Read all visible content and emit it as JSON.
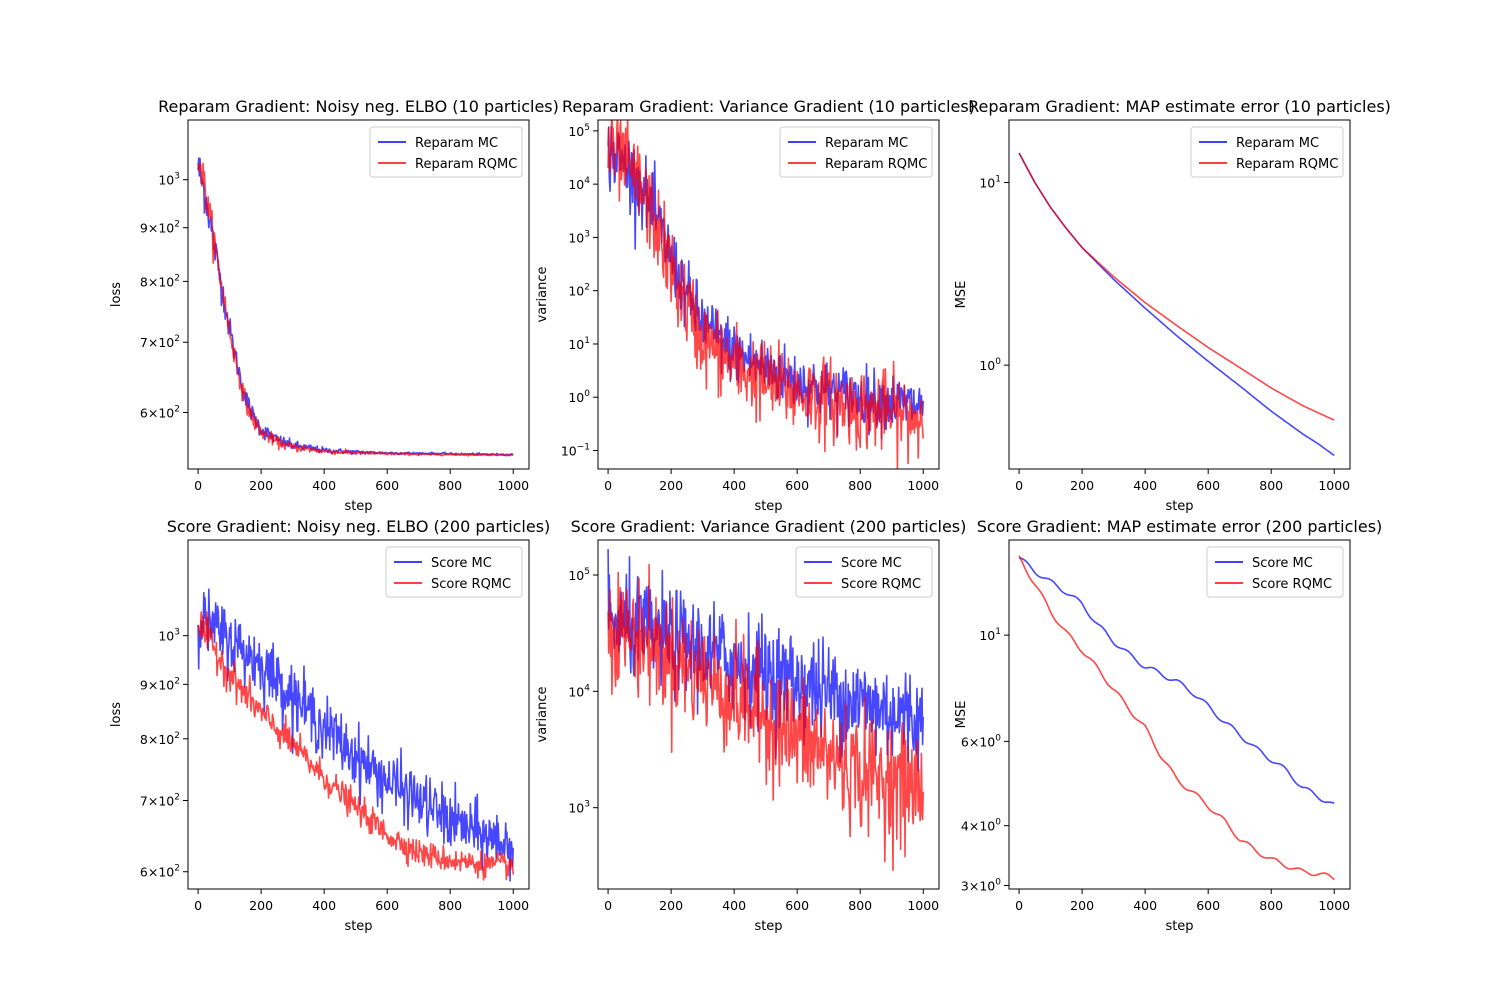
{
  "figure": {
    "background": "#ffffff"
  },
  "colors": {
    "mc": "#0000ff",
    "rqmc": "#ff0000",
    "mc_alpha": 0.72,
    "rqmc_alpha": 0.72
  },
  "chart_data": [
    {
      "type": "line",
      "title": "Reparam Gradient: Noisy neg. ELBO (10 particles)",
      "xlabel": "step",
      "ylabel": "loss",
      "yscale": "log",
      "xlim": [
        -32,
        1050
      ],
      "ylim": [
        530,
        1140
      ],
      "xticks": [
        0,
        200,
        400,
        600,
        800,
        1000
      ],
      "yticks": [
        {
          "value": 600,
          "base": "6",
          "exp": "2"
        },
        {
          "value": 700,
          "base": "7",
          "exp": "2"
        },
        {
          "value": 800,
          "base": "8",
          "exp": "2"
        },
        {
          "value": 900,
          "base": "9",
          "exp": "2"
        },
        {
          "value": 1000,
          "base": "10",
          "exp": "3"
        }
      ],
      "legend": "top-right",
      "grid": false,
      "series": [
        {
          "name": "Reparam MC",
          "color": "#0000ff",
          "style": "noisy",
          "curve": [
            [
              0,
              1030
            ],
            [
              25,
              960
            ],
            [
              50,
              870
            ],
            [
              75,
              790
            ],
            [
              100,
              720
            ],
            [
              125,
              665
            ],
            [
              150,
              620
            ],
            [
              175,
              595
            ],
            [
              200,
              578
            ],
            [
              250,
              565
            ],
            [
              300,
              558
            ],
            [
              400,
              552
            ],
            [
              500,
              550
            ],
            [
              600,
              549
            ],
            [
              800,
              548
            ],
            [
              1000,
              547
            ]
          ],
          "noise": 0.025,
          "noise_end": 0.0008,
          "noise_tau": 180
        },
        {
          "name": "Reparam RQMC",
          "color": "#ff0000",
          "style": "noisy",
          "curve": [
            [
              0,
              1060
            ],
            [
              25,
              970
            ],
            [
              50,
              875
            ],
            [
              75,
              792
            ],
            [
              100,
              718
            ],
            [
              125,
              660
            ],
            [
              150,
              615
            ],
            [
              175,
              590
            ],
            [
              200,
              575
            ],
            [
              250,
              562
            ],
            [
              300,
              556
            ],
            [
              400,
              551
            ],
            [
              500,
              549
            ],
            [
              600,
              548
            ],
            [
              800,
              547
            ],
            [
              1000,
              546.5
            ]
          ],
          "noise": 0.022,
          "noise_end": 0.0007,
          "noise_tau": 180
        }
      ]
    },
    {
      "type": "line",
      "title": "Reparam Gradient: Variance Gradient (10 particles)",
      "xlabel": "step",
      "ylabel": "variance",
      "yscale": "log",
      "xlim": [
        -32,
        1050
      ],
      "ylim": [
        0.045,
        160000
      ],
      "xticks": [
        0,
        200,
        400,
        600,
        800,
        1000
      ],
      "yticks": [
        {
          "value": 0.1,
          "base": "10",
          "exp": "−1"
        },
        {
          "value": 1,
          "base": "10",
          "exp": "0"
        },
        {
          "value": 10,
          "base": "10",
          "exp": "1"
        },
        {
          "value": 100,
          "base": "10",
          "exp": "2"
        },
        {
          "value": 1000,
          "base": "10",
          "exp": "3"
        },
        {
          "value": 10000,
          "base": "10",
          "exp": "4"
        },
        {
          "value": 100000,
          "base": "10",
          "exp": "5"
        }
      ],
      "legend": "top-right",
      "grid": false,
      "series": [
        {
          "name": "Reparam MC",
          "color": "#0000ff",
          "style": "noisy",
          "curve": [
            [
              0,
              40000
            ],
            [
              50,
              25000
            ],
            [
              100,
              10000
            ],
            [
              150,
              2500
            ],
            [
              200,
              400
            ],
            [
              250,
              80
            ],
            [
              300,
              25
            ],
            [
              400,
              7
            ],
            [
              500,
              3.5
            ],
            [
              600,
              2
            ],
            [
              700,
              1.3
            ],
            [
              800,
              1
            ],
            [
              900,
              0.8
            ],
            [
              1000,
              0.7
            ]
          ],
          "noise": 0.8,
          "noise_end": 0.6,
          "noise_tau": 400
        },
        {
          "name": "Reparam RQMC",
          "color": "#ff0000",
          "style": "noisy",
          "curve": [
            [
              0,
              45000
            ],
            [
              50,
              25000
            ],
            [
              100,
              9000
            ],
            [
              150,
              2000
            ],
            [
              200,
              250
            ],
            [
              250,
              50
            ],
            [
              300,
              12
            ],
            [
              400,
              4
            ],
            [
              500,
              2
            ],
            [
              600,
              1.2
            ],
            [
              700,
              0.9
            ],
            [
              800,
              0.6
            ],
            [
              900,
              0.5
            ],
            [
              1000,
              0.4
            ]
          ],
          "noise": 0.95,
          "noise_end": 0.85,
          "noise_tau": 400
        }
      ]
    },
    {
      "type": "line",
      "title": "Reparam Gradient: MAP estimate error (10 particles)",
      "xlabel": "step",
      "ylabel": "MSE",
      "yscale": "log",
      "xlim": [
        -32,
        1050
      ],
      "ylim": [
        0.27,
        22
      ],
      "xticks": [
        0,
        200,
        400,
        600,
        800,
        1000
      ],
      "yticks": [
        {
          "value": 1,
          "base": "10",
          "exp": "0"
        },
        {
          "value": 10,
          "base": "10",
          "exp": "1"
        }
      ],
      "legend": "top-right",
      "grid": false,
      "series": [
        {
          "name": "Reparam MC",
          "color": "#0000ff",
          "style": "smooth",
          "curve": [
            [
              0,
              14.5
            ],
            [
              50,
              10
            ],
            [
              100,
              7.3
            ],
            [
              150,
              5.6
            ],
            [
              200,
              4.4
            ],
            [
              300,
              2.95
            ],
            [
              400,
              2.05
            ],
            [
              500,
              1.45
            ],
            [
              600,
              1.05
            ],
            [
              700,
              0.77
            ],
            [
              800,
              0.56
            ],
            [
              900,
              0.42
            ],
            [
              950,
              0.37
            ],
            [
              1000,
              0.32
            ]
          ]
        },
        {
          "name": "Reparam RQMC",
          "color": "#ff0000",
          "style": "smooth",
          "curve": [
            [
              0,
              14.5
            ],
            [
              50,
              10
            ],
            [
              100,
              7.3
            ],
            [
              150,
              5.6
            ],
            [
              200,
              4.4
            ],
            [
              300,
              3.05
            ],
            [
              400,
              2.2
            ],
            [
              500,
              1.65
            ],
            [
              600,
              1.25
            ],
            [
              700,
              0.97
            ],
            [
              800,
              0.75
            ],
            [
              900,
              0.6
            ],
            [
              1000,
              0.5
            ]
          ]
        }
      ]
    },
    {
      "type": "line",
      "title": "Score Gradient: Noisy neg. ELBO (200 particles)",
      "xlabel": "step",
      "ylabel": "loss",
      "yscale": "log",
      "xlim": [
        -32,
        1050
      ],
      "ylim": [
        578,
        1230
      ],
      "xticks": [
        0,
        200,
        400,
        600,
        800,
        1000
      ],
      "yticks": [
        {
          "value": 600,
          "base": "6",
          "exp": "2"
        },
        {
          "value": 700,
          "base": "7",
          "exp": "2"
        },
        {
          "value": 800,
          "base": "8",
          "exp": "2"
        },
        {
          "value": 900,
          "base": "9",
          "exp": "2"
        },
        {
          "value": 1000,
          "base": "10",
          "exp": "3"
        }
      ],
      "legend": "top-right",
      "grid": false,
      "series": [
        {
          "name": "Score MC",
          "color": "#0000ff",
          "style": "noisy",
          "curve": [
            [
              0,
              1040
            ],
            [
              100,
              990
            ],
            [
              200,
              940
            ],
            [
              300,
              880
            ],
            [
              400,
              820
            ],
            [
              500,
              770
            ],
            [
              600,
              730
            ],
            [
              700,
              700
            ],
            [
              800,
              670
            ],
            [
              900,
              650
            ],
            [
              1000,
              635
            ]
          ],
          "noise": 0.035,
          "noise_end": 0.03,
          "noise_tau": 1000
        },
        {
          "name": "Score RQMC",
          "color": "#ff0000",
          "style": "noisy",
          "curve": [
            [
              0,
              1030
            ],
            [
              100,
              920
            ],
            [
              200,
              845
            ],
            [
              300,
              790
            ],
            [
              400,
              735
            ],
            [
              500,
              690
            ],
            [
              600,
              650
            ],
            [
              700,
              625
            ],
            [
              800,
              615
            ],
            [
              900,
              610
            ],
            [
              1000,
              608
            ]
          ],
          "noise": 0.02,
          "noise_end": 0.012,
          "noise_tau": 500
        }
      ]
    },
    {
      "type": "line",
      "title": "Score Gradient: Variance Gradient (200 particles)",
      "xlabel": "step",
      "ylabel": "variance",
      "yscale": "log",
      "xlim": [
        -32,
        1050
      ],
      "ylim": [
        200,
        200000
      ],
      "xticks": [
        0,
        200,
        400,
        600,
        800,
        1000
      ],
      "yticks": [
        {
          "value": 1000,
          "base": "10",
          "exp": "3"
        },
        {
          "value": 10000,
          "base": "10",
          "exp": "4"
        },
        {
          "value": 100000,
          "base": "10",
          "exp": "5"
        }
      ],
      "legend": "top-right",
      "grid": false,
      "series": [
        {
          "name": "Score MC",
          "color": "#0000ff",
          "style": "noisy",
          "curve": [
            [
              0,
              40000
            ],
            [
              200,
              28000
            ],
            [
              400,
              18000
            ],
            [
              600,
              12000
            ],
            [
              800,
              8000
            ],
            [
              1000,
              5500
            ]
          ],
          "noise": 0.5,
          "noise_end": 0.5,
          "noise_tau": 1000
        },
        {
          "name": "Score RQMC",
          "color": "#ff0000",
          "style": "noisy",
          "curve": [
            [
              0,
              40000
            ],
            [
              200,
              20000
            ],
            [
              400,
              9000
            ],
            [
              600,
              4000
            ],
            [
              800,
              2000
            ],
            [
              1000,
              1400
            ]
          ],
          "noise": 0.55,
          "noise_end": 0.6,
          "noise_tau": 1000
        }
      ]
    },
    {
      "type": "line",
      "title": "Score Gradient: MAP estimate error (200 particles)",
      "xlabel": "step",
      "ylabel": "MSE",
      "yscale": "log",
      "xlim": [
        -32,
        1050
      ],
      "ylim": [
        2.95,
        15.8
      ],
      "xticks": [
        0,
        200,
        400,
        600,
        800,
        1000
      ],
      "yticks": [
        {
          "value": 3,
          "base": "3",
          "exp": "0"
        },
        {
          "value": 4,
          "base": "4",
          "exp": "0"
        },
        {
          "value": 6,
          "base": "6",
          "exp": "0"
        },
        {
          "value": 10,
          "base": "10",
          "exp": "1"
        }
      ],
      "legend": "top-right",
      "grid": false,
      "series": [
        {
          "name": "Score MC",
          "color": "#0000ff",
          "style": "smooth",
          "curve": [
            [
              0,
              14.5
            ],
            [
              50,
              13.6
            ],
            [
              100,
              12.9
            ],
            [
              150,
              12.3
            ],
            [
              200,
              11.6
            ],
            [
              250,
              10.5
            ],
            [
              300,
              9.7
            ],
            [
              350,
              9.1
            ],
            [
              400,
              8.6
            ],
            [
              450,
              8.3
            ],
            [
              500,
              8.0
            ],
            [
              550,
              7.6
            ],
            [
              600,
              7.1
            ],
            [
              650,
              6.6
            ],
            [
              700,
              6.2
            ],
            [
              750,
              5.8
            ],
            [
              800,
              5.5
            ],
            [
              850,
              5.2
            ],
            [
              900,
              4.8
            ],
            [
              950,
              4.6
            ],
            [
              1000,
              4.4
            ]
          ],
          "wiggle": 0.012
        },
        {
          "name": "Score RQMC",
          "color": "#ff0000",
          "style": "smooth",
          "curve": [
            [
              0,
              14.5
            ],
            [
              50,
              12.8
            ],
            [
              100,
              11.2
            ],
            [
              150,
              10.1
            ],
            [
              200,
              9.3
            ],
            [
              250,
              8.5
            ],
            [
              300,
              7.7
            ],
            [
              350,
              7.0
            ],
            [
              400,
              6.4
            ],
            [
              450,
              5.6
            ],
            [
              500,
              5.0
            ],
            [
              550,
              4.7
            ],
            [
              600,
              4.4
            ],
            [
              650,
              4.1
            ],
            [
              700,
              3.75
            ],
            [
              750,
              3.55
            ],
            [
              800,
              3.4
            ],
            [
              850,
              3.3
            ],
            [
              900,
              3.2
            ],
            [
              950,
              3.18
            ],
            [
              1000,
              3.1
            ]
          ],
          "wiggle": 0.012
        }
      ]
    }
  ]
}
